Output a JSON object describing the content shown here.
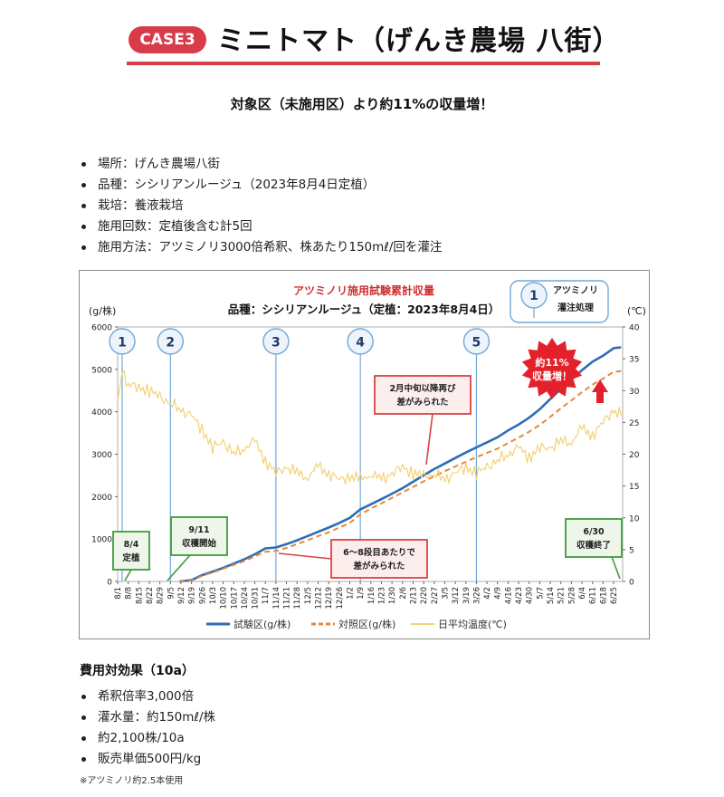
{
  "header": {
    "case_label": "CASE3",
    "title": "ミニトマト（げんき農場 八街）"
  },
  "subtitle": "対象区（未施用区）より約11%の収量増！",
  "info_items": [
    "場所：げんき農場八街",
    "品種：シシリアンルージュ（2023年8月4日定植）",
    "栽培：養液栽培",
    "施用回数：定植後含む計5回",
    "施用方法：アツミノリ3000倍希釈、株あたり150mℓ/回を灌注"
  ],
  "chart_data": {
    "type": "line",
    "title": "アツミノリ施用試験累計収量",
    "subtitle": "品種：シシリアンルージュ（定植：2023年8月4日）",
    "ylabel": "(g/株)",
    "y2label": "(℃)",
    "ylim": [
      0,
      6000
    ],
    "y2lim": [
      0,
      40
    ],
    "y_ticks": [
      "0",
      "1000",
      "2000",
      "3000",
      "4000",
      "5000",
      "6000"
    ],
    "y2_ticks": [
      "0",
      "5",
      "10",
      "15",
      "20",
      "25",
      "30",
      "35",
      "40"
    ],
    "x_tick_labels": [
      "8/1",
      "8/8",
      "8/15",
      "8/22",
      "8/29",
      "9/5",
      "9/12",
      "9/19",
      "9/26",
      "10/3",
      "10/10",
      "10/17",
      "10/24",
      "10/31",
      "11/7",
      "11/14",
      "11/21",
      "11/28",
      "12/5",
      "12/12",
      "12/19",
      "12/26",
      "1/2",
      "1/9",
      "1/16",
      "1/23",
      "1/30",
      "2/6",
      "2/13",
      "2/20",
      "2/27",
      "3/5",
      "3/12",
      "3/19",
      "3/26",
      "4/2",
      "4/9",
      "4/16",
      "4/23",
      "4/30",
      "5/7",
      "5/14",
      "5/21",
      "5/28",
      "6/4",
      "6/11",
      "6/18",
      "6/25"
    ],
    "series": [
      {
        "name": "試験区(g/株)",
        "color": "#2e6db4",
        "axis": "left",
        "x": [
          "9/11",
          "9/19",
          "9/26",
          "10/3",
          "10/10",
          "10/17",
          "10/24",
          "10/31",
          "11/7",
          "11/14",
          "11/21",
          "11/28",
          "12/5",
          "12/12",
          "12/19",
          "12/26",
          "1/2",
          "1/9",
          "1/16",
          "1/23",
          "1/30",
          "2/6",
          "2/13",
          "2/20",
          "2/27",
          "3/5",
          "3/12",
          "3/19",
          "3/26",
          "4/2",
          "4/9",
          "4/16",
          "4/23",
          "4/30",
          "5/7",
          "5/14",
          "5/21",
          "5/28",
          "6/4",
          "6/11",
          "6/18",
          "6/25",
          "6/30"
        ],
        "values": [
          0,
          30,
          150,
          230,
          320,
          420,
          520,
          640,
          780,
          800,
          880,
          970,
          1070,
          1170,
          1270,
          1380,
          1500,
          1700,
          1820,
          1940,
          2070,
          2200,
          2350,
          2500,
          2650,
          2780,
          2910,
          3040,
          3160,
          3280,
          3400,
          3560,
          3700,
          3860,
          4060,
          4300,
          4540,
          4760,
          4980,
          5180,
          5320,
          5500,
          5520
        ]
      },
      {
        "name": "対照区(g/株)",
        "color": "#e8873a",
        "axis": "left",
        "dashed": true,
        "x": [
          "9/11",
          "9/19",
          "9/26",
          "10/3",
          "10/10",
          "10/17",
          "10/24",
          "10/31",
          "11/7",
          "11/14",
          "11/21",
          "11/28",
          "12/5",
          "12/12",
          "12/19",
          "12/26",
          "1/2",
          "1/9",
          "1/16",
          "1/23",
          "1/30",
          "2/6",
          "2/13",
          "2/20",
          "2/27",
          "3/5",
          "3/12",
          "3/19",
          "3/26",
          "4/2",
          "4/9",
          "4/16",
          "4/23",
          "4/30",
          "5/7",
          "5/14",
          "5/21",
          "5/28",
          "6/4",
          "6/11",
          "6/18",
          "6/25",
          "6/30"
        ],
        "values": [
          0,
          20,
          130,
          210,
          300,
          390,
          480,
          590,
          700,
          720,
          790,
          880,
          970,
          1070,
          1160,
          1270,
          1380,
          1580,
          1720,
          1840,
          1970,
          2100,
          2230,
          2360,
          2480,
          2600,
          2710,
          2820,
          2930,
          3030,
          3130,
          3260,
          3390,
          3530,
          3690,
          3880,
          4080,
          4270,
          4460,
          4640,
          4780,
          4940,
          4960
        ]
      },
      {
        "name": "日平均温度(℃)",
        "color": "#f2d27a",
        "axis": "right",
        "x": [
          "8/1",
          "8/4",
          "8/8",
          "8/15",
          "8/22",
          "8/29",
          "9/5",
          "9/12",
          "9/19",
          "9/26",
          "10/3",
          "10/10",
          "10/17",
          "10/24",
          "10/31",
          "11/7",
          "11/14",
          "11/21",
          "11/28",
          "12/5",
          "12/12",
          "12/19",
          "12/26",
          "1/2",
          "1/9",
          "1/16",
          "1/23",
          "1/30",
          "2/6",
          "2/13",
          "2/20",
          "2/27",
          "3/5",
          "3/12",
          "3/19",
          "3/26",
          "4/2",
          "4/9",
          "4/16",
          "4/23",
          "4/30",
          "5/7",
          "5/14",
          "5/21",
          "5/28",
          "6/4",
          "6/11",
          "6/18",
          "6/25",
          "6/30"
        ],
        "values": [
          29,
          33,
          31,
          30.5,
          30,
          29,
          28,
          27,
          26,
          24,
          21,
          22,
          20,
          21,
          22,
          19,
          17,
          18,
          17,
          16.5,
          18,
          17,
          16,
          16.5,
          16,
          17,
          16,
          17,
          18,
          17,
          16.5,
          17,
          16,
          17,
          18,
          17,
          18,
          19,
          20,
          21,
          19.5,
          21,
          21,
          22,
          22,
          24,
          23,
          25,
          27,
          26
        ]
      }
    ],
    "application_markers": [
      {
        "label": "1",
        "x": "8/4"
      },
      {
        "label": "2",
        "x": "9/5"
      },
      {
        "label": "3",
        "x": "11/14"
      },
      {
        "label": "4",
        "x": "1/9"
      },
      {
        "label": "5",
        "x": "3/26"
      }
    ],
    "legend_marker": {
      "label": "1",
      "text": [
        "アツミノリ",
        "灌注処理"
      ]
    },
    "annotations": [
      {
        "lines": [
          "8/4",
          "定植"
        ],
        "style": "green"
      },
      {
        "lines": [
          "9/11",
          "収穫開始"
        ],
        "style": "green"
      },
      {
        "lines": [
          "6/30",
          "収穫終了"
        ],
        "style": "green"
      },
      {
        "lines": [
          "6～8段目あたりで",
          "差がみられた"
        ],
        "style": "red"
      },
      {
        "lines": [
          "2月中旬以降再び",
          "差がみられた"
        ],
        "style": "red"
      },
      {
        "lines": [
          "約11%",
          "収量増！"
        ],
        "style": "burst"
      }
    ],
    "legend_position": "bottom"
  },
  "cost": {
    "title": "費用対効果（10a）",
    "items": [
      "希釈倍率3,000倍",
      "灌水量：約150mℓ/株",
      "約2,100株/10a",
      "販売単価500円/kg"
    ]
  },
  "footnote": "※アツミノリ約2.5本使用",
  "colors": {
    "accent_red": "#d83b4a",
    "marker_blue": "#6fa9d8",
    "green_box": "#3f9a3c",
    "red_box": "#d94343"
  }
}
